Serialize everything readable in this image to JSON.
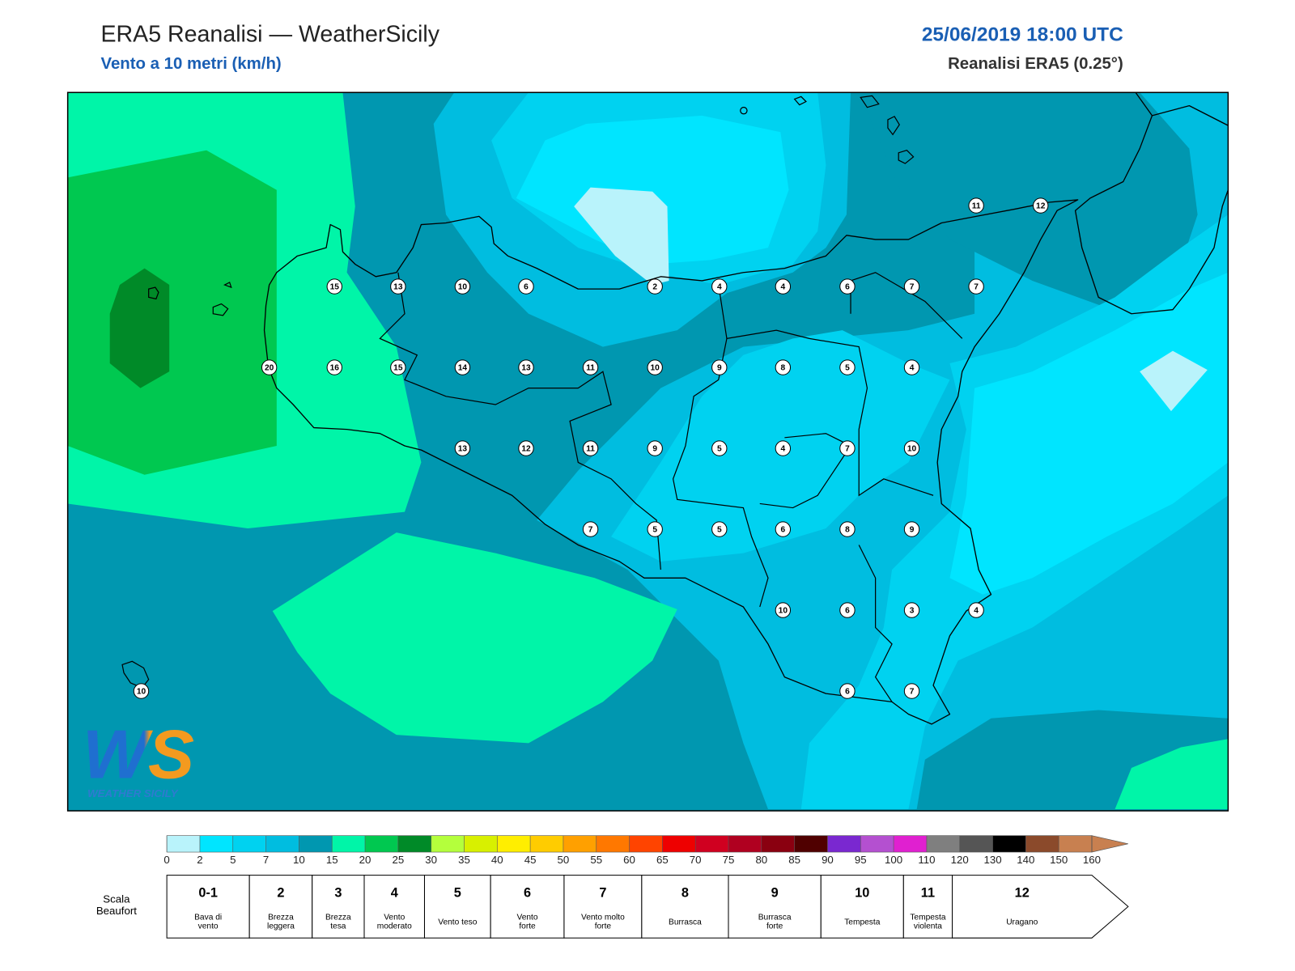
{
  "header": {
    "title": "ERA5 Reanalisi — WeatherSicily",
    "subtitle": "Vento a 10 metri (km/h)",
    "datetime": "25/06/2019 18:00 UTC",
    "source": "Reanalisi ERA5 (0.25°)"
  },
  "map": {
    "station_values": [
      11,
      12,
      15,
      13,
      10,
      6,
      2,
      4,
      4,
      6,
      7,
      7,
      20,
      16,
      15,
      14,
      13,
      11,
      10,
      9,
      8,
      5,
      4,
      13,
      12,
      11,
      9,
      5,
      4,
      7,
      10,
      7,
      5,
      5,
      6,
      8,
      9,
      10,
      6,
      3,
      4,
      10,
      6,
      7
    ]
  },
  "logo": {
    "mark": "WS",
    "name": "WEATHER SICILY"
  },
  "colorbar": {
    "ticks": [
      0,
      2,
      5,
      7,
      10,
      15,
      20,
      25,
      30,
      35,
      40,
      45,
      50,
      55,
      60,
      65,
      70,
      75,
      80,
      85,
      90,
      95,
      100,
      110,
      120,
      130,
      140,
      150,
      160
    ],
    "colors": [
      "#b9f3fb",
      "#00e5ff",
      "#00d2f0",
      "#00bde0",
      "#0097b0",
      "#00f5a8",
      "#00c850",
      "#008a28",
      "#b4ff3c",
      "#d8f000",
      "#ffee00",
      "#ffcc00",
      "#ffa000",
      "#ff7800",
      "#ff4400",
      "#ee0000",
      "#d00020",
      "#b00020",
      "#8a0010",
      "#500000",
      "#7a28d0",
      "#b450d0",
      "#e020d0",
      "#7f7f7f",
      "#555555",
      "#000000",
      "#8b4a2b",
      "#c88050"
    ],
    "extension_color": "#c88050"
  },
  "beaufort": {
    "label": [
      "Scala",
      "Beaufort"
    ],
    "classes": [
      {
        "force": "0-1",
        "description": [
          "Bava di",
          "vento"
        ]
      },
      {
        "force": "2",
        "description": [
          "Brezza",
          "leggera"
        ]
      },
      {
        "force": "3",
        "description": [
          "Brezza",
          "tesa"
        ]
      },
      {
        "force": "4",
        "description": [
          "Vento",
          "moderato"
        ]
      },
      {
        "force": "5",
        "description": [
          "Vento teso"
        ]
      },
      {
        "force": "6",
        "description": [
          "Vento",
          "forte"
        ]
      },
      {
        "force": "7",
        "description": [
          "Vento molto",
          "forte"
        ]
      },
      {
        "force": "8",
        "description": [
          "Burrasca"
        ]
      },
      {
        "force": "9",
        "description": [
          "Burrasca",
          "forte"
        ]
      },
      {
        "force": "10",
        "description": [
          "Tempesta"
        ]
      },
      {
        "force": "11",
        "description": [
          "Tempesta",
          "violenta"
        ]
      },
      {
        "force": "12",
        "description": [
          "Uragano"
        ]
      }
    ]
  }
}
